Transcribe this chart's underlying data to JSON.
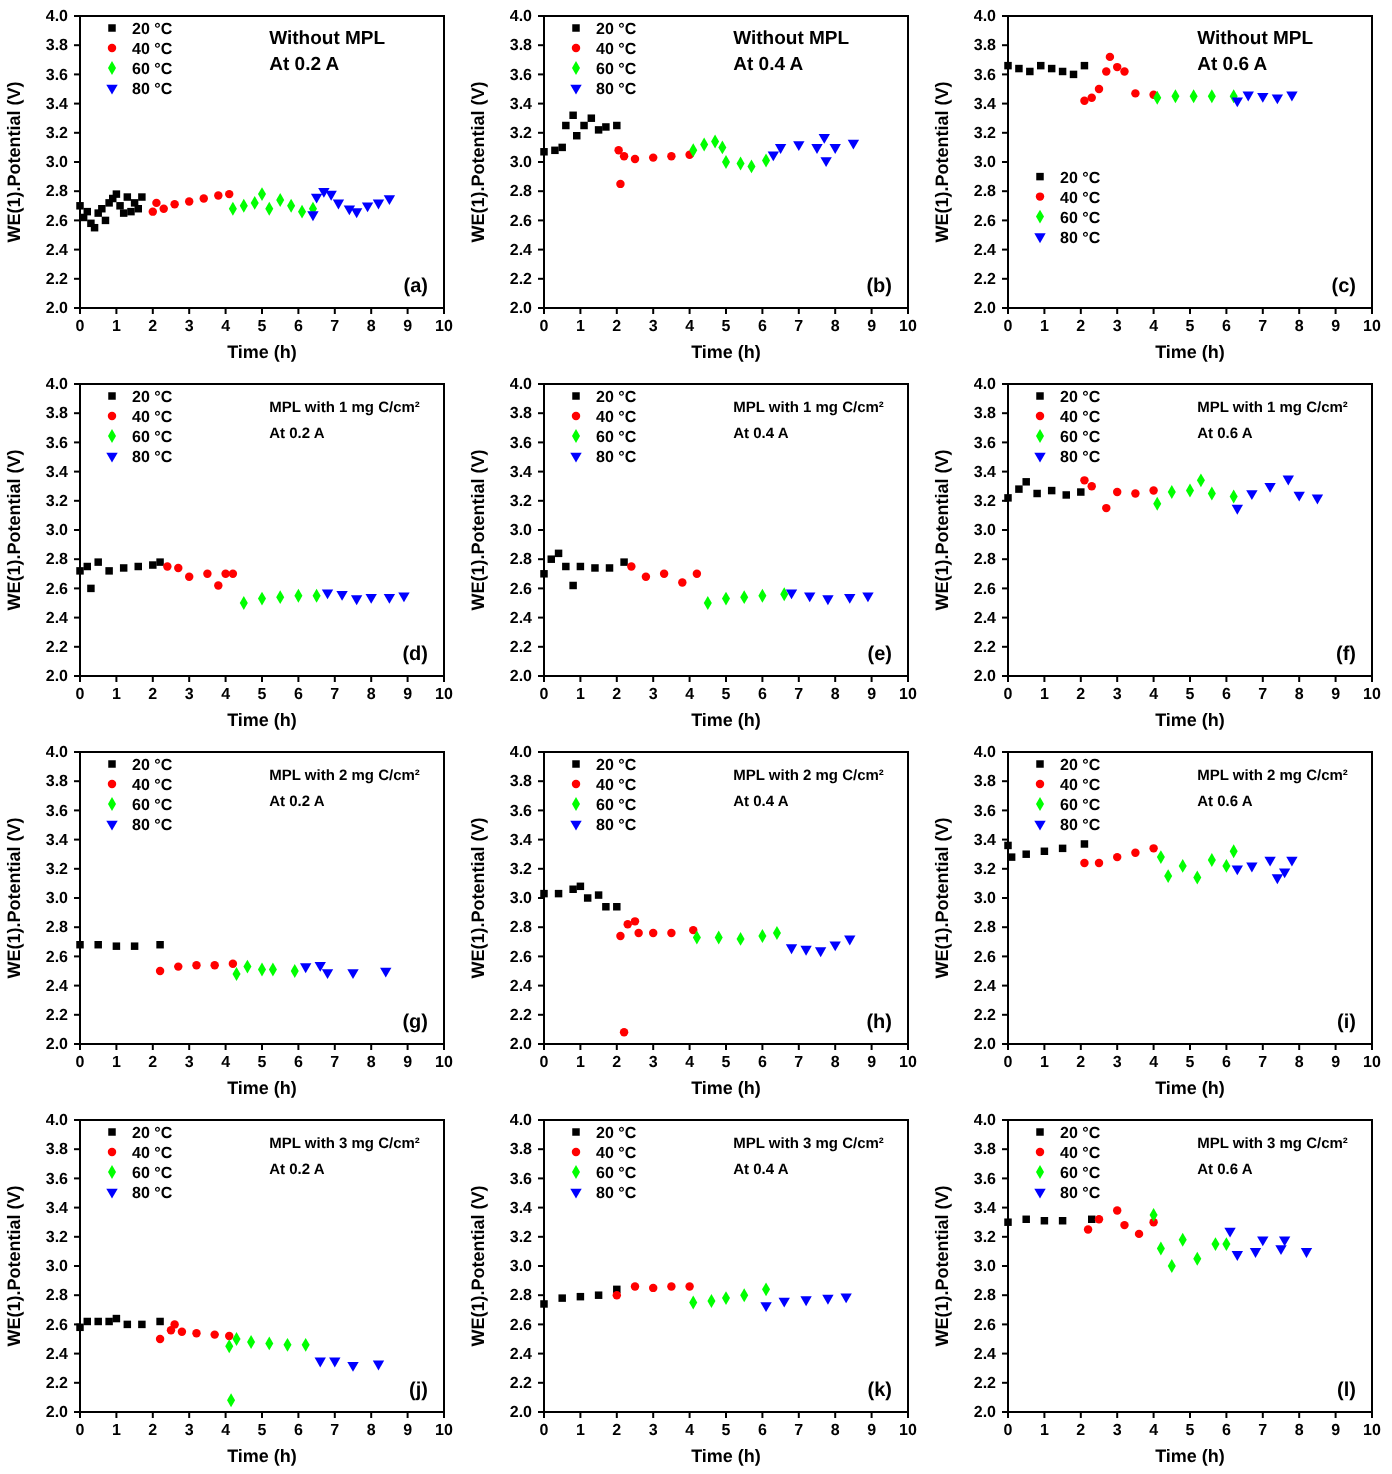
{
  "chart_data": [
    {
      "type": "scatter",
      "xlabel": "Time (h)",
      "ylabel": "WE(1).Potential (V)",
      "annotations": [
        "Without MPL",
        "At 0.2 A",
        "(a)"
      ],
      "legend": "top left",
      "xlim": [
        0,
        10
      ],
      "xticks": [
        0,
        1,
        2,
        3,
        4,
        5,
        6,
        7,
        8,
        9,
        10
      ],
      "ylim": [
        2,
        4
      ],
      "yticks": [
        {
          "value": 2,
          "label": "2.0"
        },
        {
          "value": 2.2,
          "label": "2.2"
        },
        {
          "value": 2.4,
          "label": "2.4"
        },
        {
          "value": 2.6,
          "label": "2.6"
        },
        {
          "value": 2.8,
          "label": "2.8"
        },
        {
          "value": 3,
          "label": "3.0"
        },
        {
          "value": 3.2,
          "label": "3.2"
        },
        {
          "value": 3.4,
          "label": "3.4"
        },
        {
          "value": 3.6,
          "label": "3.6"
        },
        {
          "value": 3.8,
          "label": "3.8"
        },
        {
          "value": 4,
          "label": "4.0"
        }
      ],
      "series": [
        {
          "name": "20 °C",
          "color": "#000000",
          "marker": "square",
          "x": [
            0,
            0.1,
            0.2,
            0.3,
            0.4,
            0.5,
            0.6,
            0.7,
            0.8,
            0.9,
            1.0,
            1.1,
            1.2,
            1.3,
            1.4,
            1.5,
            1.6,
            1.7
          ],
          "values": [
            2.7,
            2.62,
            2.66,
            2.58,
            2.55,
            2.65,
            2.68,
            2.6,
            2.72,
            2.75,
            2.78,
            2.7,
            2.65,
            2.76,
            2.66,
            2.72,
            2.68,
            2.76
          ]
        },
        {
          "name": "40 °C",
          "color": "#ff0000",
          "marker": "circle",
          "x": [
            2.0,
            2.1,
            2.3,
            2.6,
            3.0,
            3.4,
            3.8,
            4.1
          ],
          "values": [
            2.66,
            2.72,
            2.68,
            2.71,
            2.73,
            2.75,
            2.77,
            2.78
          ]
        },
        {
          "name": "60 °C",
          "color": "#00ff00",
          "marker": "diamond",
          "x": [
            4.2,
            4.5,
            4.8,
            5.0,
            5.2,
            5.5,
            5.8,
            6.1,
            6.4
          ],
          "values": [
            2.68,
            2.7,
            2.72,
            2.78,
            2.68,
            2.74,
            2.7,
            2.66,
            2.68
          ]
        },
        {
          "name": "80 °C",
          "color": "#0000ff",
          "marker": "triangle",
          "x": [
            6.4,
            6.5,
            6.7,
            6.9,
            7.1,
            7.4,
            7.6,
            7.9,
            8.2,
            8.5
          ],
          "values": [
            2.64,
            2.76,
            2.8,
            2.78,
            2.72,
            2.68,
            2.66,
            2.7,
            2.72,
            2.75
          ]
        }
      ]
    },
    {
      "type": "scatter",
      "xlabel": "Time (h)",
      "ylabel": "WE(1).Potential (V)",
      "annotations": [
        "Without MPL",
        "At 0.4 A",
        "(b)"
      ],
      "legend": "top left",
      "xlim": [
        0,
        10
      ],
      "xticks": [
        0,
        1,
        2,
        3,
        4,
        5,
        6,
        7,
        8,
        9,
        10
      ],
      "ylim": [
        2,
        4
      ],
      "yticks": [
        {
          "value": 2,
          "label": "2.0"
        },
        {
          "value": 2.2,
          "label": "2.2"
        },
        {
          "value": 2.4,
          "label": "2.4"
        },
        {
          "value": 2.6,
          "label": "2.6"
        },
        {
          "value": 2.8,
          "label": "2.8"
        },
        {
          "value": 3,
          "label": "3.0"
        },
        {
          "value": 3.2,
          "label": "3.2"
        },
        {
          "value": 3.4,
          "label": "3.4"
        },
        {
          "value": 3.6,
          "label": "3.6"
        },
        {
          "value": 3.8,
          "label": "3.8"
        },
        {
          "value": 4,
          "label": "4.0"
        }
      ],
      "series": [
        {
          "name": "20 °C",
          "color": "#000000",
          "marker": "square",
          "x": [
            0,
            0.3,
            0.5,
            0.6,
            0.8,
            0.9,
            1.1,
            1.3,
            1.5,
            1.7,
            2.0
          ],
          "values": [
            3.07,
            3.08,
            3.1,
            3.25,
            3.32,
            3.18,
            3.25,
            3.3,
            3.22,
            3.24,
            3.25
          ]
        },
        {
          "name": "40 °C",
          "color": "#ff0000",
          "marker": "circle",
          "x": [
            2.05,
            2.1,
            2.2,
            2.5,
            3.0,
            3.5,
            4.0
          ],
          "values": [
            3.08,
            2.85,
            3.04,
            3.02,
            3.03,
            3.04,
            3.05
          ]
        },
        {
          "name": "60 °C",
          "color": "#00ff00",
          "marker": "diamond",
          "x": [
            4.1,
            4.4,
            4.7,
            4.9,
            5.0,
            5.4,
            5.7,
            6.1
          ],
          "values": [
            3.08,
            3.12,
            3.14,
            3.1,
            3.0,
            2.99,
            2.97,
            3.01
          ]
        },
        {
          "name": "80 °C",
          "color": "#0000ff",
          "marker": "triangle",
          "x": [
            6.3,
            6.5,
            7.0,
            7.5,
            7.7,
            7.75,
            8.0,
            8.5
          ],
          "values": [
            3.05,
            3.1,
            3.12,
            3.1,
            3.17,
            3.01,
            3.1,
            3.13
          ]
        }
      ]
    },
    {
      "type": "scatter",
      "xlabel": "Time (h)",
      "ylabel": "WE(1).Potential (V)",
      "annotations": [
        "Without MPL",
        "At 0.6 A",
        "(c)"
      ],
      "legend": "left",
      "xlim": [
        0,
        10
      ],
      "xticks": [
        0,
        1,
        2,
        3,
        4,
        5,
        6,
        7,
        8,
        9,
        10
      ],
      "ylim": [
        2,
        4
      ],
      "yticks": [
        {
          "value": 2,
          "label": "2.0"
        },
        {
          "value": 2.2,
          "label": "2.2"
        },
        {
          "value": 2.4,
          "label": "2.4"
        },
        {
          "value": 2.6,
          "label": "2.6"
        },
        {
          "value": 2.8,
          "label": "2.8"
        },
        {
          "value": 3,
          "label": "3.0"
        },
        {
          "value": 3.2,
          "label": "3.2"
        },
        {
          "value": 3.4,
          "label": "3.4"
        },
        {
          "value": 3.6,
          "label": "3.6"
        },
        {
          "value": 3.8,
          "label": "3.8"
        },
        {
          "value": 4,
          "label": "4.0"
        }
      ],
      "series": [
        {
          "name": "20 °C",
          "color": "#000000",
          "marker": "square",
          "x": [
            0,
            0.3,
            0.6,
            0.9,
            1.2,
            1.5,
            1.8,
            2.1
          ],
          "values": [
            3.66,
            3.64,
            3.62,
            3.66,
            3.64,
            3.62,
            3.6,
            3.66
          ]
        },
        {
          "name": "40 °C",
          "color": "#ff0000",
          "marker": "circle",
          "x": [
            2.1,
            2.3,
            2.5,
            2.7,
            2.8,
            3.0,
            3.2,
            3.5,
            4.0
          ],
          "values": [
            3.42,
            3.44,
            3.5,
            3.62,
            3.72,
            3.65,
            3.62,
            3.47,
            3.46
          ]
        },
        {
          "name": "60 °C",
          "color": "#00ff00",
          "marker": "diamond",
          "x": [
            4.1,
            4.6,
            5.1,
            5.6,
            6.2
          ],
          "values": [
            3.44,
            3.45,
            3.45,
            3.45,
            3.45
          ]
        },
        {
          "name": "80 °C",
          "color": "#0000ff",
          "marker": "triangle",
          "x": [
            6.3,
            6.6,
            7.0,
            7.4,
            7.8
          ],
          "values": [
            3.42,
            3.46,
            3.45,
            3.44,
            3.46
          ]
        }
      ]
    },
    {
      "type": "scatter",
      "xlabel": "Time (h)",
      "ylabel": "WE(1).Potential (V)",
      "annotations": [
        "MPL with 1 mg C/cm²",
        "At 0.2 A",
        "(d)"
      ],
      "legend": "top left",
      "xlim": [
        0,
        10
      ],
      "xticks": [
        0,
        1,
        2,
        3,
        4,
        5,
        6,
        7,
        8,
        9,
        10
      ],
      "ylim": [
        2,
        4
      ],
      "yticks": [
        {
          "value": 2,
          "label": "2.0"
        },
        {
          "value": 2.2,
          "label": "2.2"
        },
        {
          "value": 2.4,
          "label": "2.4"
        },
        {
          "value": 2.6,
          "label": "2.6"
        },
        {
          "value": 2.8,
          "label": "2.8"
        },
        {
          "value": 3,
          "label": "3.0"
        },
        {
          "value": 3.2,
          "label": "3.2"
        },
        {
          "value": 3.4,
          "label": "3.4"
        },
        {
          "value": 3.6,
          "label": "3.6"
        },
        {
          "value": 3.8,
          "label": "3.8"
        },
        {
          "value": 4,
          "label": "4.0"
        }
      ],
      "series": [
        {
          "name": "20 °C",
          "color": "#000000",
          "marker": "square",
          "x": [
            0,
            0.2,
            0.3,
            0.5,
            0.8,
            1.2,
            1.6,
            2.0,
            2.2
          ],
          "values": [
            2.72,
            2.75,
            2.6,
            2.78,
            2.72,
            2.74,
            2.75,
            2.76,
            2.78
          ]
        },
        {
          "name": "40 °C",
          "color": "#ff0000",
          "marker": "circle",
          "x": [
            2.4,
            2.7,
            3.0,
            3.5,
            3.8,
            4.0,
            4.2
          ],
          "values": [
            2.75,
            2.74,
            2.68,
            2.7,
            2.62,
            2.7,
            2.7
          ]
        },
        {
          "name": "60 °C",
          "color": "#00ff00",
          "marker": "diamond",
          "x": [
            4.5,
            5.0,
            5.5,
            6.0,
            6.5
          ],
          "values": [
            2.5,
            2.53,
            2.54,
            2.55,
            2.55
          ]
        },
        {
          "name": "80 °C",
          "color": "#0000ff",
          "marker": "triangle",
          "x": [
            6.8,
            7.2,
            7.6,
            8.0,
            8.5,
            8.9
          ],
          "values": [
            2.57,
            2.56,
            2.53,
            2.54,
            2.54,
            2.55
          ]
        }
      ]
    },
    {
      "type": "scatter",
      "xlabel": "Time (h)",
      "ylabel": "WE(1).Potential (V)",
      "annotations": [
        "MPL with 1 mg C/cm²",
        "At 0.4 A",
        "(e)"
      ],
      "legend": "top left",
      "xlim": [
        0,
        10
      ],
      "xticks": [
        0,
        1,
        2,
        3,
        4,
        5,
        6,
        7,
        8,
        9,
        10
      ],
      "ylim": [
        2,
        4
      ],
      "yticks": [
        {
          "value": 2,
          "label": "2.0"
        },
        {
          "value": 2.2,
          "label": "2.2"
        },
        {
          "value": 2.4,
          "label": "2.4"
        },
        {
          "value": 2.6,
          "label": "2.6"
        },
        {
          "value": 2.8,
          "label": "2.8"
        },
        {
          "value": 3,
          "label": "3.0"
        },
        {
          "value": 3.2,
          "label": "3.2"
        },
        {
          "value": 3.4,
          "label": "3.4"
        },
        {
          "value": 3.6,
          "label": "3.6"
        },
        {
          "value": 3.8,
          "label": "3.8"
        },
        {
          "value": 4,
          "label": "4.0"
        }
      ],
      "series": [
        {
          "name": "20 °C",
          "color": "#000000",
          "marker": "square",
          "x": [
            0,
            0.2,
            0.4,
            0.6,
            0.8,
            1.0,
            1.4,
            1.8,
            2.2
          ],
          "values": [
            2.7,
            2.8,
            2.84,
            2.75,
            2.62,
            2.75,
            2.74,
            2.74,
            2.78
          ]
        },
        {
          "name": "40 °C",
          "color": "#ff0000",
          "marker": "circle",
          "x": [
            2.4,
            2.8,
            3.3,
            3.8,
            4.2
          ],
          "values": [
            2.75,
            2.68,
            2.7,
            2.64,
            2.7
          ]
        },
        {
          "name": "60 °C",
          "color": "#00ff00",
          "marker": "diamond",
          "x": [
            4.5,
            5.0,
            5.5,
            6.0,
            6.6
          ],
          "values": [
            2.5,
            2.53,
            2.54,
            2.55,
            2.56
          ]
        },
        {
          "name": "80 °C",
          "color": "#0000ff",
          "marker": "triangle",
          "x": [
            6.8,
            7.3,
            7.8,
            8.4,
            8.9
          ],
          "values": [
            2.57,
            2.55,
            2.53,
            2.54,
            2.55
          ]
        }
      ]
    },
    {
      "type": "scatter",
      "xlabel": "Time (h)",
      "ylabel": "WE(1).Potential (V)",
      "annotations": [
        "MPL with 1 mg C/cm²",
        "At 0.6 A",
        "(f)"
      ],
      "legend": "top left",
      "xlim": [
        0,
        10
      ],
      "xticks": [
        0,
        1,
        2,
        3,
        4,
        5,
        6,
        7,
        8,
        9,
        10
      ],
      "ylim": [
        2,
        4
      ],
      "yticks": [
        {
          "value": 2,
          "label": "2.0"
        },
        {
          "value": 2.2,
          "label": "2.2"
        },
        {
          "value": 2.4,
          "label": "2.4"
        },
        {
          "value": 2.6,
          "label": "2.6"
        },
        {
          "value": 2.8,
          "label": "2.8"
        },
        {
          "value": 3,
          "label": "3.0"
        },
        {
          "value": 3.2,
          "label": "3.2"
        },
        {
          "value": 3.4,
          "label": "3.4"
        },
        {
          "value": 3.6,
          "label": "3.6"
        },
        {
          "value": 3.8,
          "label": "3.8"
        },
        {
          "value": 4,
          "label": "4.0"
        }
      ],
      "series": [
        {
          "name": "20 °C",
          "color": "#000000",
          "marker": "square",
          "x": [
            0,
            0.3,
            0.5,
            0.8,
            1.2,
            1.6,
            2.0
          ],
          "values": [
            3.22,
            3.28,
            3.33,
            3.25,
            3.27,
            3.24,
            3.26
          ]
        },
        {
          "name": "40 °C",
          "color": "#ff0000",
          "marker": "circle",
          "x": [
            2.1,
            2.3,
            2.7,
            3.0,
            3.5,
            4.0
          ],
          "values": [
            3.34,
            3.3,
            3.15,
            3.26,
            3.25,
            3.27
          ]
        },
        {
          "name": "60 °C",
          "color": "#00ff00",
          "marker": "diamond",
          "x": [
            4.1,
            4.5,
            5.0,
            5.3,
            5.6,
            6.2
          ],
          "values": [
            3.18,
            3.26,
            3.27,
            3.34,
            3.25,
            3.23
          ]
        },
        {
          "name": "80 °C",
          "color": "#0000ff",
          "marker": "triangle",
          "x": [
            6.3,
            6.7,
            7.2,
            7.7,
            8.0,
            8.5
          ],
          "values": [
            3.15,
            3.25,
            3.3,
            3.35,
            3.24,
            3.22
          ]
        }
      ]
    },
    {
      "type": "scatter",
      "xlabel": "Time (h)",
      "ylabel": "WE(1).Potential (V)",
      "annotations": [
        "MPL with 2 mg C/cm²",
        "At 0.2 A",
        "(g)"
      ],
      "legend": "top left",
      "xlim": [
        0,
        10
      ],
      "xticks": [
        0,
        1,
        2,
        3,
        4,
        5,
        6,
        7,
        8,
        9,
        10
      ],
      "ylim": [
        2,
        4
      ],
      "yticks": [
        {
          "value": 2,
          "label": "2.0"
        },
        {
          "value": 2.2,
          "label": "2.2"
        },
        {
          "value": 2.4,
          "label": "2.4"
        },
        {
          "value": 2.6,
          "label": "2.6"
        },
        {
          "value": 2.8,
          "label": "2.8"
        },
        {
          "value": 3,
          "label": "3.0"
        },
        {
          "value": 3.2,
          "label": "3.2"
        },
        {
          "value": 3.4,
          "label": "3.4"
        },
        {
          "value": 3.6,
          "label": "3.6"
        },
        {
          "value": 3.8,
          "label": "3.8"
        },
        {
          "value": 4,
          "label": "4.0"
        }
      ],
      "series": [
        {
          "name": "20 °C",
          "color": "#000000",
          "marker": "square",
          "x": [
            0,
            0.5,
            1.0,
            1.5,
            2.2
          ],
          "values": [
            2.68,
            2.68,
            2.67,
            2.67,
            2.68
          ]
        },
        {
          "name": "40 °C",
          "color": "#ff0000",
          "marker": "circle",
          "x": [
            2.2,
            2.7,
            3.2,
            3.7,
            4.2
          ],
          "values": [
            2.5,
            2.53,
            2.54,
            2.54,
            2.55
          ]
        },
        {
          "name": "60 °C",
          "color": "#00ff00",
          "marker": "diamond",
          "x": [
            4.3,
            4.6,
            5.0,
            5.3,
            5.9
          ],
          "values": [
            2.48,
            2.53,
            2.51,
            2.51,
            2.5
          ]
        },
        {
          "name": "80 °C",
          "color": "#0000ff",
          "marker": "triangle",
          "x": [
            6.2,
            6.6,
            6.8,
            7.5,
            8.4
          ],
          "values": [
            2.53,
            2.54,
            2.49,
            2.49,
            2.5
          ]
        }
      ]
    },
    {
      "type": "scatter",
      "xlabel": "Time (h)",
      "ylabel": "WE(1).Potential (V)",
      "annotations": [
        "MPL with 2 mg C/cm²",
        "At 0.4 A",
        "(h)"
      ],
      "legend": "top left",
      "xlim": [
        0,
        10
      ],
      "xticks": [
        0,
        1,
        2,
        3,
        4,
        5,
        6,
        7,
        8,
        9,
        10
      ],
      "ylim": [
        2,
        4
      ],
      "yticks": [
        {
          "value": 2,
          "label": "2.0"
        },
        {
          "value": 2.2,
          "label": "2.2"
        },
        {
          "value": 2.4,
          "label": "2.4"
        },
        {
          "value": 2.6,
          "label": "2.6"
        },
        {
          "value": 2.8,
          "label": "2.8"
        },
        {
          "value": 3,
          "label": "3.0"
        },
        {
          "value": 3.2,
          "label": "3.2"
        },
        {
          "value": 3.4,
          "label": "3.4"
        },
        {
          "value": 3.6,
          "label": "3.6"
        },
        {
          "value": 3.8,
          "label": "3.8"
        },
        {
          "value": 4,
          "label": "4.0"
        }
      ],
      "series": [
        {
          "name": "20 °C",
          "color": "#000000",
          "marker": "square",
          "x": [
            0,
            0.4,
            0.8,
            1.0,
            1.2,
            1.5,
            1.7,
            2.0
          ],
          "values": [
            3.03,
            3.03,
            3.06,
            3.08,
            3.0,
            3.02,
            2.94,
            2.94
          ]
        },
        {
          "name": "40 °C",
          "color": "#ff0000",
          "marker": "circle",
          "x": [
            2.1,
            2.2,
            2.3,
            2.5,
            2.6,
            3.0,
            3.5,
            4.1
          ],
          "values": [
            2.74,
            2.08,
            2.82,
            2.84,
            2.76,
            2.76,
            2.76,
            2.78
          ]
        },
        {
          "name": "60 °C",
          "color": "#00ff00",
          "marker": "diamond",
          "x": [
            4.2,
            4.8,
            5.4,
            6.0,
            6.4
          ],
          "values": [
            2.73,
            2.73,
            2.72,
            2.74,
            2.76
          ]
        },
        {
          "name": "80 °C",
          "color": "#0000ff",
          "marker": "triangle",
          "x": [
            6.8,
            7.2,
            7.6,
            8.0,
            8.4
          ],
          "values": [
            2.66,
            2.65,
            2.64,
            2.68,
            2.72
          ]
        }
      ]
    },
    {
      "type": "scatter",
      "xlabel": "Time (h)",
      "ylabel": "WE(1).Potential (V)",
      "annotations": [
        "MPL with 2 mg C/cm²",
        "At 0.6 A",
        "(i)"
      ],
      "legend": "top left",
      "xlim": [
        0,
        10
      ],
      "xticks": [
        0,
        1,
        2,
        3,
        4,
        5,
        6,
        7,
        8,
        9,
        10
      ],
      "ylim": [
        2,
        4
      ],
      "yticks": [
        {
          "value": 2,
          "label": "2.0"
        },
        {
          "value": 2.2,
          "label": "2.2"
        },
        {
          "value": 2.4,
          "label": "2.4"
        },
        {
          "value": 2.6,
          "label": "2.6"
        },
        {
          "value": 2.8,
          "label": "2.8"
        },
        {
          "value": 3,
          "label": "3.0"
        },
        {
          "value": 3.2,
          "label": "3.2"
        },
        {
          "value": 3.4,
          "label": "3.4"
        },
        {
          "value": 3.6,
          "label": "3.6"
        },
        {
          "value": 3.8,
          "label": "3.8"
        },
        {
          "value": 4,
          "label": "4.0"
        }
      ],
      "series": [
        {
          "name": "20 °C",
          "color": "#000000",
          "marker": "square",
          "x": [
            0,
            0.1,
            0.5,
            1.0,
            1.5,
            2.1
          ],
          "values": [
            3.36,
            3.28,
            3.3,
            3.32,
            3.34,
            3.37
          ]
        },
        {
          "name": "40 °C",
          "color": "#ff0000",
          "marker": "circle",
          "x": [
            2.1,
            2.5,
            3.0,
            3.5,
            4.0
          ],
          "values": [
            3.24,
            3.24,
            3.28,
            3.31,
            3.34
          ]
        },
        {
          "name": "60 °C",
          "color": "#00ff00",
          "marker": "diamond",
          "x": [
            4.2,
            4.4,
            4.8,
            5.2,
            5.6,
            6.0,
            6.2
          ],
          "values": [
            3.28,
            3.15,
            3.22,
            3.14,
            3.26,
            3.22,
            3.32
          ]
        },
        {
          "name": "80 °C",
          "color": "#0000ff",
          "marker": "triangle",
          "x": [
            6.3,
            6.7,
            7.2,
            7.4,
            7.6,
            7.8
          ],
          "values": [
            3.2,
            3.22,
            3.26,
            3.14,
            3.18,
            3.26
          ]
        }
      ]
    },
    {
      "type": "scatter",
      "xlabel": "Time (h)",
      "ylabel": "WE(1).Potential (V)",
      "annotations": [
        "MPL with 3 mg C/cm²",
        "At 0.2 A",
        "(j)"
      ],
      "legend": "top left",
      "xlim": [
        0,
        10
      ],
      "xticks": [
        0,
        1,
        2,
        3,
        4,
        5,
        6,
        7,
        8,
        9,
        10
      ],
      "ylim": [
        2,
        4
      ],
      "yticks": [
        {
          "value": 2,
          "label": "2.0"
        },
        {
          "value": 2.2,
          "label": "2.2"
        },
        {
          "value": 2.4,
          "label": "2.4"
        },
        {
          "value": 2.6,
          "label": "2.6"
        },
        {
          "value": 2.8,
          "label": "2.8"
        },
        {
          "value": 3,
          "label": "3.0"
        },
        {
          "value": 3.2,
          "label": "3.2"
        },
        {
          "value": 3.4,
          "label": "3.4"
        },
        {
          "value": 3.6,
          "label": "3.6"
        },
        {
          "value": 3.8,
          "label": "3.8"
        },
        {
          "value": 4,
          "label": "4.0"
        }
      ],
      "series": [
        {
          "name": "20 °C",
          "color": "#000000",
          "marker": "square",
          "x": [
            0,
            0.2,
            0.5,
            0.8,
            1.0,
            1.3,
            1.7,
            2.2
          ],
          "values": [
            2.58,
            2.62,
            2.62,
            2.62,
            2.64,
            2.6,
            2.6,
            2.62
          ]
        },
        {
          "name": "40 °C",
          "color": "#ff0000",
          "marker": "circle",
          "x": [
            2.2,
            2.5,
            2.6,
            2.8,
            3.2,
            3.7,
            4.1
          ],
          "values": [
            2.5,
            2.56,
            2.6,
            2.55,
            2.54,
            2.53,
            2.52
          ]
        },
        {
          "name": "60 °C",
          "color": "#00ff00",
          "marker": "diamond",
          "x": [
            4.1,
            4.15,
            4.3,
            4.7,
            5.2,
            5.7,
            6.2
          ],
          "values": [
            2.45,
            2.08,
            2.5,
            2.48,
            2.47,
            2.46,
            2.46
          ]
        },
        {
          "name": "80 °C",
          "color": "#0000ff",
          "marker": "triangle",
          "x": [
            6.6,
            7.0,
            7.5,
            8.2
          ],
          "values": [
            2.35,
            2.35,
            2.32,
            2.33
          ]
        }
      ]
    },
    {
      "type": "scatter",
      "xlabel": "Time (h)",
      "ylabel": "WE(1).Potential (V)",
      "annotations": [
        "MPL with 3 mg C/cm²",
        "At 0.4 A",
        "(k)"
      ],
      "legend": "top left",
      "xlim": [
        0,
        10
      ],
      "xticks": [
        0,
        1,
        2,
        3,
        4,
        5,
        6,
        7,
        8,
        9,
        10
      ],
      "ylim": [
        2,
        4
      ],
      "yticks": [
        {
          "value": 2,
          "label": "2.0"
        },
        {
          "value": 2.2,
          "label": "2.2"
        },
        {
          "value": 2.4,
          "label": "2.4"
        },
        {
          "value": 2.6,
          "label": "2.6"
        },
        {
          "value": 2.8,
          "label": "2.8"
        },
        {
          "value": 3,
          "label": "3.0"
        },
        {
          "value": 3.2,
          "label": "3.2"
        },
        {
          "value": 3.4,
          "label": "3.4"
        },
        {
          "value": 3.6,
          "label": "3.6"
        },
        {
          "value": 3.8,
          "label": "3.8"
        },
        {
          "value": 4,
          "label": "4.0"
        }
      ],
      "series": [
        {
          "name": "20 °C",
          "color": "#000000",
          "marker": "square",
          "x": [
            0,
            0.5,
            1.0,
            1.5,
            2.0
          ],
          "values": [
            2.74,
            2.78,
            2.79,
            2.8,
            2.84
          ]
        },
        {
          "name": "40 °C",
          "color": "#ff0000",
          "marker": "circle",
          "x": [
            2.0,
            2.5,
            3.0,
            3.5,
            4.0
          ],
          "values": [
            2.8,
            2.86,
            2.85,
            2.86,
            2.86
          ]
        },
        {
          "name": "60 °C",
          "color": "#00ff00",
          "marker": "diamond",
          "x": [
            4.1,
            4.6,
            5.0,
            5.5,
            6.1
          ],
          "values": [
            2.75,
            2.76,
            2.78,
            2.8,
            2.84
          ]
        },
        {
          "name": "80 °C",
          "color": "#0000ff",
          "marker": "triangle",
          "x": [
            6.1,
            6.6,
            7.2,
            7.8,
            8.3
          ],
          "values": [
            2.73,
            2.76,
            2.77,
            2.78,
            2.79
          ]
        }
      ]
    },
    {
      "type": "scatter",
      "xlabel": "Time (h)",
      "ylabel": "WE(1).Potential (V)",
      "annotations": [
        "MPL with 3 mg C/cm²",
        "At 0.6 A",
        "(l)"
      ],
      "legend": "top left",
      "xlim": [
        0,
        10
      ],
      "xticks": [
        0,
        1,
        2,
        3,
        4,
        5,
        6,
        7,
        8,
        9,
        10
      ],
      "ylim": [
        2,
        4
      ],
      "yticks": [
        {
          "value": 2,
          "label": "2.0"
        },
        {
          "value": 2.2,
          "label": "2.2"
        },
        {
          "value": 2.4,
          "label": "2.4"
        },
        {
          "value": 2.6,
          "label": "2.6"
        },
        {
          "value": 2.8,
          "label": "2.8"
        },
        {
          "value": 3,
          "label": "3.0"
        },
        {
          "value": 3.2,
          "label": "3.2"
        },
        {
          "value": 3.4,
          "label": "3.4"
        },
        {
          "value": 3.6,
          "label": "3.6"
        },
        {
          "value": 3.8,
          "label": "3.8"
        },
        {
          "value": 4,
          "label": "4.0"
        }
      ],
      "series": [
        {
          "name": "20 °C",
          "color": "#000000",
          "marker": "square",
          "x": [
            0,
            0.5,
            1.0,
            1.5,
            2.3
          ],
          "values": [
            3.3,
            3.32,
            3.31,
            3.31,
            3.32
          ]
        },
        {
          "name": "40 °C",
          "color": "#ff0000",
          "marker": "circle",
          "x": [
            2.2,
            2.5,
            3.0,
            3.2,
            3.6,
            4.0
          ],
          "values": [
            3.25,
            3.32,
            3.38,
            3.28,
            3.22,
            3.3
          ]
        },
        {
          "name": "60 °C",
          "color": "#00ff00",
          "marker": "diamond",
          "x": [
            4.0,
            4.2,
            4.5,
            4.8,
            5.2,
            5.7,
            6.0
          ],
          "values": [
            3.35,
            3.12,
            3.0,
            3.18,
            3.05,
            3.15,
            3.15
          ]
        },
        {
          "name": "80 °C",
          "color": "#0000ff",
          "marker": "triangle",
          "x": [
            6.1,
            6.3,
            6.8,
            7.0,
            7.5,
            7.6,
            8.2
          ],
          "values": [
            3.24,
            3.08,
            3.1,
            3.18,
            3.12,
            3.18,
            3.1
          ]
        }
      ]
    }
  ]
}
